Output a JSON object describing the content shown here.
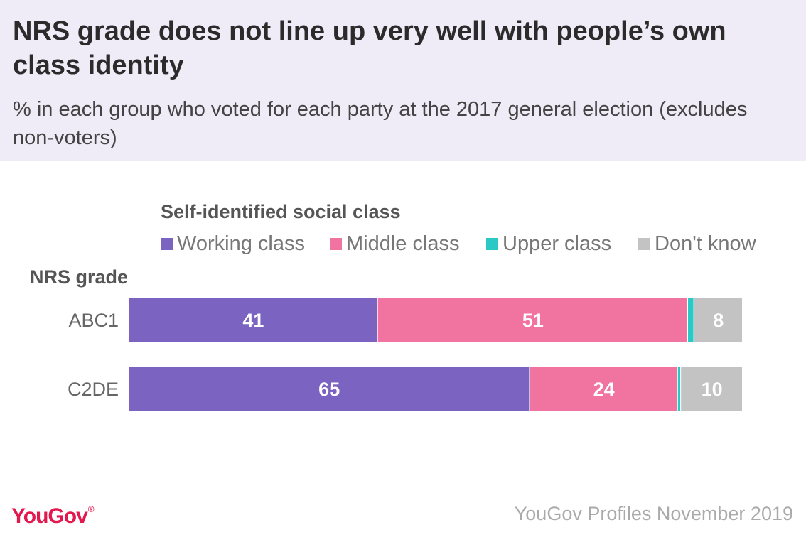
{
  "header": {
    "title": "NRS grade does not line up very well with people’s own class identity",
    "subtitle": "% in each group who voted for each party at the 2017 general election (excludes non-voters)"
  },
  "legend": {
    "title": "Self-identified social class"
  },
  "axis_title": "NRS grade",
  "footer": {
    "logo": "YouGov",
    "source": "YouGov Profiles November 2019"
  },
  "colors": {
    "Working class": "#7b63c1",
    "Middle class": "#f173a0",
    "Upper class": "#2bc9c5",
    "Don't know": "#c3c3c3",
    "header_bg": "#efecf7",
    "logo": "#e2194e"
  },
  "chart_data": {
    "type": "bar",
    "orientation": "horizontal",
    "stacked": true,
    "categories": [
      "ABC1",
      "C2DE"
    ],
    "series": [
      {
        "name": "Working class",
        "values": [
          41,
          65
        ],
        "labels": [
          "41",
          "65"
        ]
      },
      {
        "name": "Middle class",
        "values": [
          51,
          24
        ],
        "labels": [
          "51",
          "24"
        ]
      },
      {
        "name": "Upper class",
        "values": [
          1,
          0.5
        ],
        "labels": [
          "",
          ""
        ]
      },
      {
        "name": "Don't know",
        "values": [
          8,
          10
        ],
        "labels": [
          "8",
          "10"
        ]
      }
    ],
    "xlim": [
      0,
      100
    ],
    "legend_position": "top",
    "grid": false
  }
}
